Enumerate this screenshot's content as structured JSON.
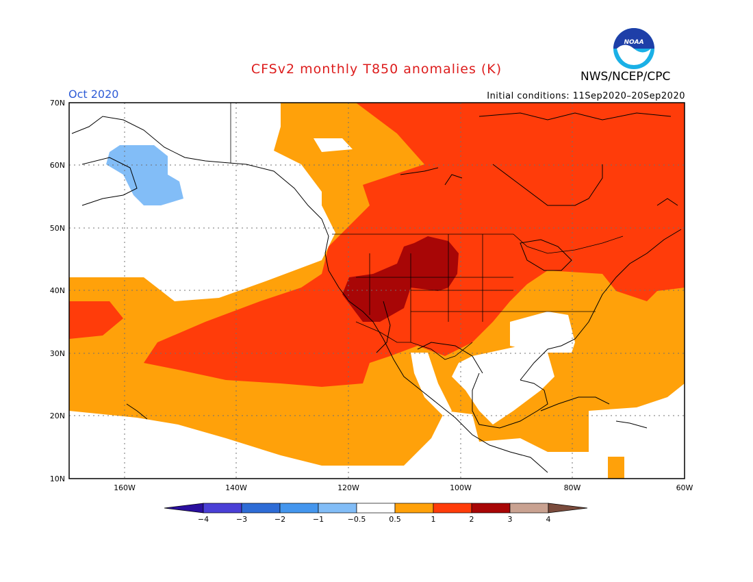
{
  "title": "CFSv2 monthly T850 anomalies (K)",
  "organization": "NWS/NCEP/CPC",
  "logo_text": "NOAA",
  "valid_month": "Oct 2020",
  "initial_conditions": "Initial conditions: 11Sep2020–20Sep2020",
  "colors": {
    "title": "#dd1c1c",
    "month": "#2d5bd6",
    "land_outline": "#000000"
  },
  "map": {
    "lat_labels": [
      "70N",
      "60N",
      "50N",
      "40N",
      "30N",
      "20N",
      "10N"
    ],
    "lon_labels": [
      "160W",
      "140W",
      "120W",
      "100W",
      "80W",
      "60W"
    ]
  },
  "colorbar": {
    "labels": [
      "−4",
      "−3",
      "−2",
      "−1",
      "−0.5",
      "0.5",
      "1",
      "2",
      "3",
      "4"
    ],
    "colors": [
      "#2a0f9e",
      "#4a3fd6",
      "#2e6cd6",
      "#4496ee",
      "#82bdf7",
      "#ffffff",
      "#ffa10a",
      "#ff3c0a",
      "#a80606",
      "#c9a291",
      "#7a4b3c"
    ]
  }
}
